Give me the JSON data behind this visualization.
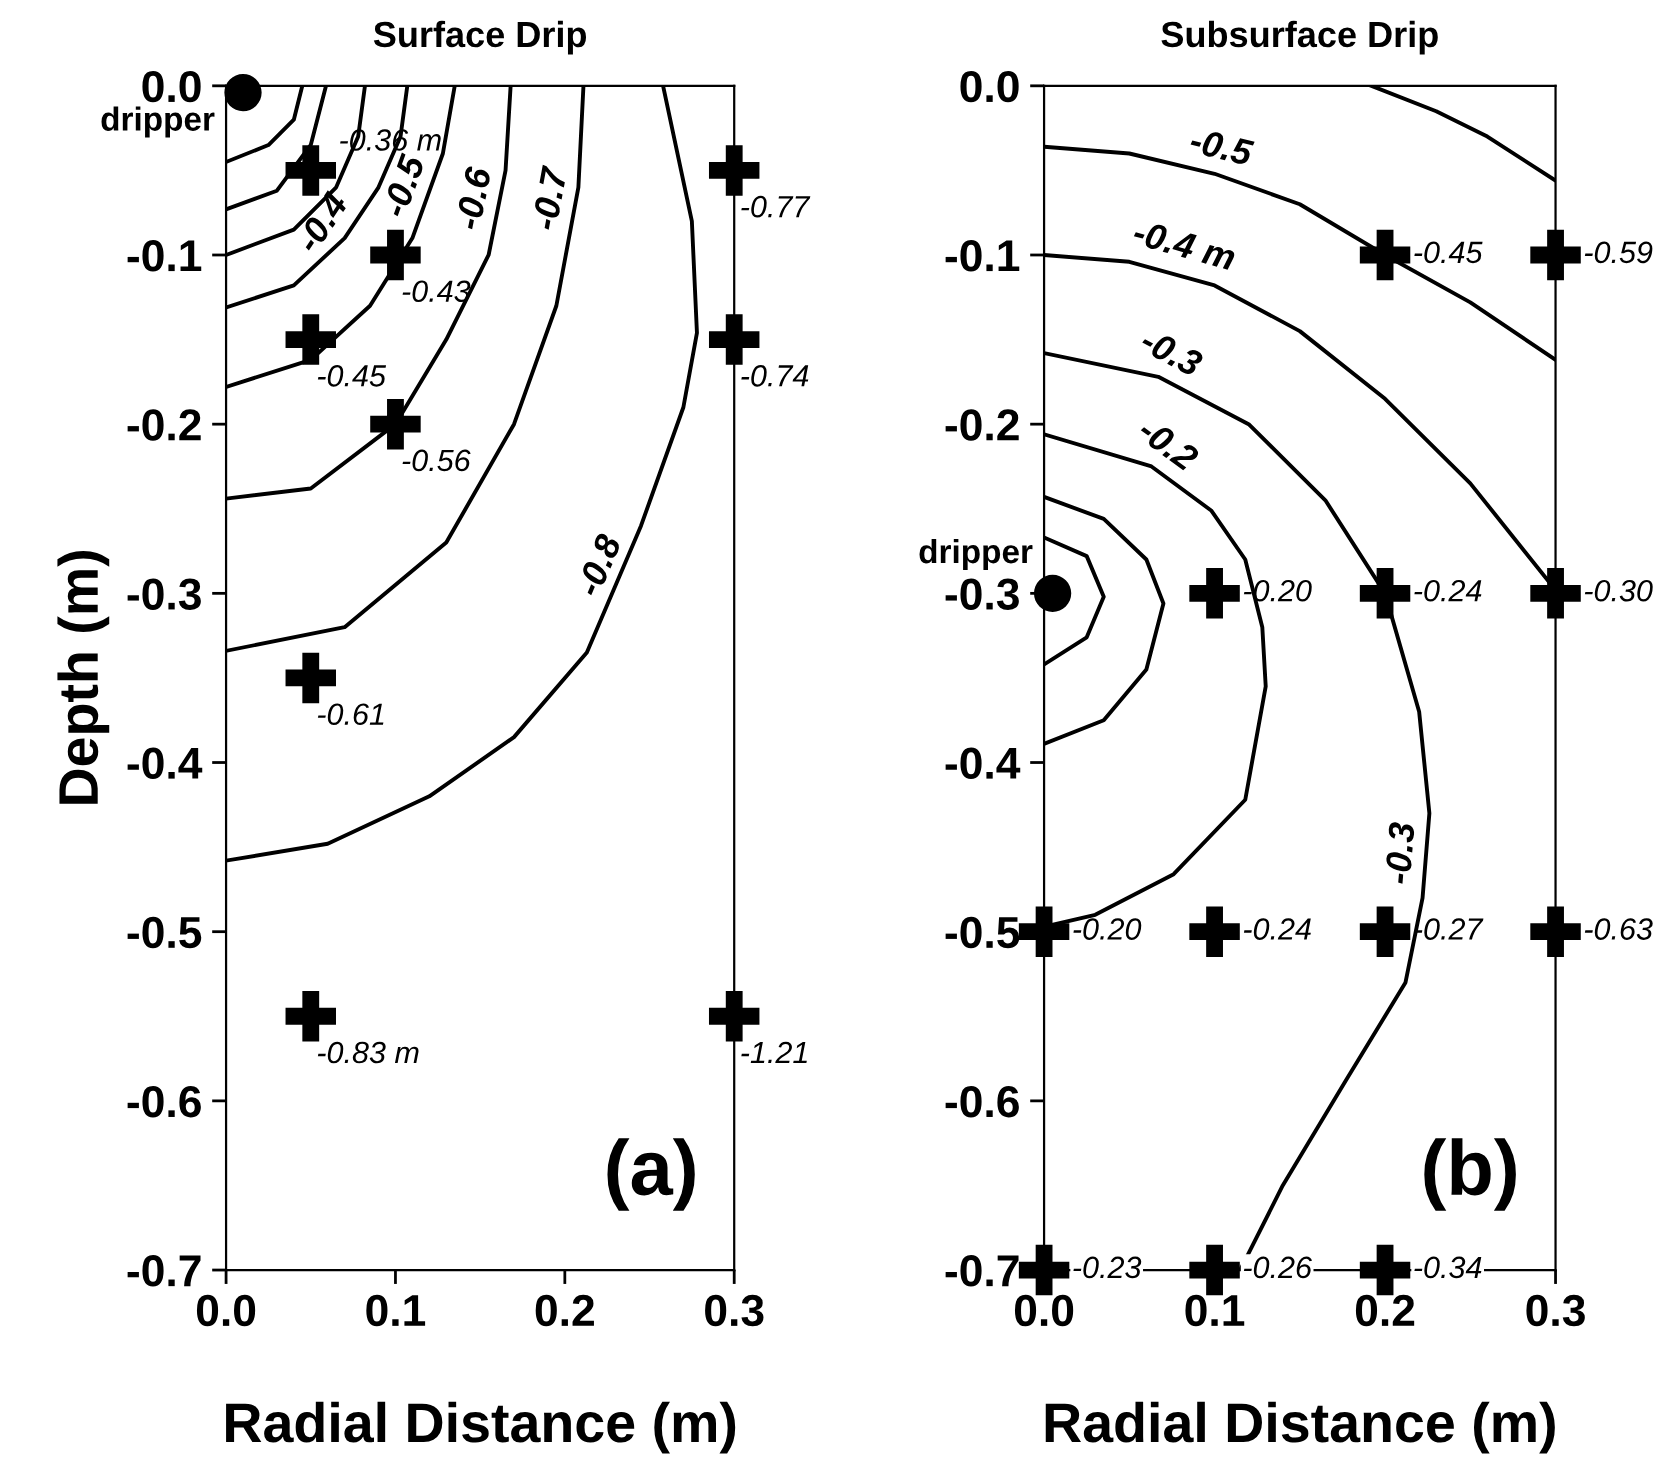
{
  "chart_data": [
    {
      "type": "line",
      "title": "Surface Drip",
      "xlabel": "Radial Distance (m)",
      "ylabel": "Depth (m)",
      "grid": false,
      "xlim": [
        0,
        0.3
      ],
      "ylim": [
        -0.7,
        0
      ],
      "xticks": [
        {
          "value": 0,
          "label": "0.0"
        },
        0.1,
        0.2,
        0.3
      ],
      "yticks": [
        {
          "value": 0,
          "label": "0.0"
        },
        {
          "value": -0.1,
          "label": "-0.1"
        },
        {
          "value": -0.2,
          "label": "-0.2"
        },
        {
          "value": -0.3,
          "label": "-0.3"
        },
        {
          "value": -0.4,
          "label": "-0.4"
        },
        {
          "value": -0.5,
          "label": "-0.5"
        },
        {
          "value": -0.6,
          "label": "-0.6"
        },
        {
          "value": -0.7,
          "label": "-0.7"
        }
      ],
      "series": [
        {
          "color": "#000000",
          "x": [
            0,
            0.025,
            0.04,
            0.045
          ],
          "values": [
            -0.045,
            -0.035,
            -0.02,
            0
          ]
        },
        {
          "color": "#000000",
          "x": [
            0,
            0.03,
            0.05,
            0.059
          ],
          "values": [
            -0.073,
            -0.062,
            -0.035,
            0
          ]
        },
        {
          "color": "#000000",
          "x": [
            0,
            0.04,
            0.065,
            0.078,
            0.082
          ],
          "values": [
            -0.1,
            -0.085,
            -0.06,
            -0.03,
            0
          ]
        },
        {
          "color": "#000000",
          "x": [
            0,
            0.04,
            0.07,
            0.09,
            0.103,
            0.107
          ],
          "values": [
            -0.131,
            -0.118,
            -0.09,
            -0.06,
            -0.03,
            0
          ]
        },
        {
          "color": "#000000",
          "x": [
            0,
            0.05,
            0.085,
            0.11,
            0.128,
            0.135
          ],
          "values": [
            -0.178,
            -0.162,
            -0.13,
            -0.09,
            -0.04,
            0
          ]
        },
        {
          "color": "#000000",
          "x": [
            0,
            0.05,
            0.1,
            0.13,
            0.155,
            0.165,
            0.168
          ],
          "values": [
            -0.244,
            -0.238,
            -0.2,
            -0.15,
            -0.1,
            -0.05,
            0
          ]
        },
        {
          "color": "#000000",
          "x": [
            0,
            0.07,
            0.13,
            0.17,
            0.195,
            0.208,
            0.211
          ],
          "values": [
            -0.334,
            -0.32,
            -0.27,
            -0.2,
            -0.13,
            -0.06,
            0
          ]
        },
        {
          "color": "#000000",
          "x": [
            0,
            0.06,
            0.12,
            0.17,
            0.213,
            0.245,
            0.27,
            0.278,
            0.275,
            0.258
          ],
          "values": [
            -0.458,
            -0.448,
            -0.42,
            -0.385,
            -0.335,
            -0.26,
            -0.19,
            -0.146,
            -0.08,
            0
          ]
        },
        {
          "type": "scatter",
          "marker": "circle",
          "color": "#000000",
          "x": [
            0.01
          ],
          "values": [
            -0.004
          ]
        },
        {
          "type": "scatter",
          "marker": "cross",
          "color": "#000000",
          "x": [
            0.05,
            0.1,
            0.05,
            0.1,
            0.05,
            0.05,
            0.3,
            0.3,
            0.3
          ],
          "values": [
            -0.05,
            -0.1,
            -0.15,
            -0.2,
            -0.35,
            -0.55,
            -0.05,
            -0.15,
            -0.55
          ]
        }
      ],
      "annotations": [
        {
          "text": "dripper",
          "x": 0,
          "y": 0
        },
        {
          "text": "-0.4",
          "x": 0.07,
          "y": -0.09
        },
        {
          "text": "-0.5",
          "x": 0.12,
          "y": -0.065
        },
        {
          "text": "-0.6",
          "x": 0.162,
          "y": -0.07
        },
        {
          "text": "-0.7",
          "x": 0.207,
          "y": -0.07
        },
        {
          "text": "-0.8",
          "x": 0.235,
          "y": -0.29
        },
        {
          "text": "-0.36 m",
          "x": 0.05,
          "y": -0.05
        },
        {
          "text": "-0.43",
          "x": 0.1,
          "y": -0.1
        },
        {
          "text": "-0.45",
          "x": 0.05,
          "y": -0.15
        },
        {
          "text": "-0.56",
          "x": 0.1,
          "y": -0.2
        },
        {
          "text": "-0.61",
          "x": 0.05,
          "y": -0.35
        },
        {
          "text": "-0.83 m",
          "x": 0.05,
          "y": -0.55
        },
        {
          "text": "-0.77",
          "x": 0.3,
          "y": -0.05
        },
        {
          "text": "-0.74",
          "x": 0.3,
          "y": -0.15
        },
        {
          "text": "-1.21",
          "x": 0.3,
          "y": -0.55
        },
        "(a)"
      ]
    },
    {
      "type": "line",
      "title": "Subsurface Drip",
      "xlabel": "Radial Distance (m)",
      "xlim": [
        0,
        0.3
      ],
      "ylim": [
        -0.7,
        0
      ],
      "xticks": [
        {
          "value": 0,
          "label": "0.0"
        },
        0.1,
        0.2,
        0.3
      ],
      "yticks": [
        {
          "value": 0,
          "label": "0.0"
        },
        {
          "value": -0.1,
          "label": "-0.1"
        },
        {
          "value": -0.2,
          "label": "-0.2"
        },
        {
          "value": -0.3,
          "label": "-0.3"
        },
        {
          "value": -0.4,
          "label": "-0.4"
        },
        {
          "value": -0.5,
          "label": "-0.5"
        },
        {
          "value": -0.6,
          "label": "-0.6"
        },
        {
          "value": -0.7,
          "label": "-0.7"
        }
      ],
      "grid": false,
      "series": [
        {
          "color": "#000000",
          "x": [
            0.192,
            0.23,
            0.26,
            0.3
          ],
          "values": [
            0,
            -0.015,
            -0.03,
            -0.056
          ]
        },
        {
          "color": "#000000",
          "x": [
            0,
            0.05,
            0.1,
            0.15,
            0.2,
            0.25,
            0.3
          ],
          "values": [
            -0.036,
            -0.04,
            -0.052,
            -0.07,
            -0.1,
            -0.128,
            -0.162
          ]
        },
        {
          "color": "#000000",
          "x": [
            0,
            0.05,
            0.1,
            0.15,
            0.2,
            0.25,
            0.3
          ],
          "values": [
            -0.1,
            -0.104,
            -0.118,
            -0.145,
            -0.185,
            -0.235,
            -0.298
          ]
        },
        {
          "color": "#000000",
          "x": [
            0,
            0.067,
            0.12,
            0.165,
            0.2,
            0.22,
            0.226,
            0.222,
            0.212,
            0.177,
            0.14,
            0.115
          ],
          "values": [
            -0.158,
            -0.172,
            -0.2,
            -0.245,
            -0.3,
            -0.37,
            -0.43,
            -0.48,
            -0.53,
            -0.588,
            -0.65,
            -0.7
          ]
        },
        {
          "color": "#000000",
          "x": [
            0,
            0.063,
            0.098,
            0.118,
            0.128,
            0.13,
            0.118,
            0.076,
            0.03,
            0
          ],
          "values": [
            -0.206,
            -0.225,
            -0.251,
            -0.28,
            -0.32,
            -0.355,
            -0.422,
            -0.466,
            -0.49,
            -0.497
          ]
        },
        {
          "color": "#000000",
          "x": [
            0,
            0.035,
            0.06,
            0.07,
            0.06,
            0.035,
            0
          ],
          "values": [
            -0.243,
            -0.256,
            -0.28,
            -0.306,
            -0.345,
            -0.375,
            -0.389
          ]
        },
        {
          "color": "#000000",
          "x": [
            0,
            0.025,
            0.035,
            0.025,
            0
          ],
          "values": [
            -0.267,
            -0.278,
            -0.302,
            -0.326,
            -0.342
          ]
        },
        {
          "type": "scatter",
          "marker": "circle",
          "color": "#000000",
          "x": [
            0.005
          ],
          "values": [
            -0.3
          ]
        },
        {
          "type": "scatter",
          "marker": "cross",
          "color": "#000000",
          "x": [
            0.2,
            0.3,
            0.1,
            0.2,
            0.3,
            0,
            0.1,
            0.2,
            0.3,
            0,
            0.1,
            0.2
          ],
          "values": [
            -0.1,
            -0.1,
            -0.3,
            -0.3,
            -0.3,
            -0.5,
            -0.5,
            -0.5,
            -0.5,
            -0.7,
            -0.7,
            -0.7
          ]
        }
      ],
      "annotations": [
        {
          "text": "dripper",
          "x": 0,
          "y": -0.3
        },
        {
          "text": "-0.5",
          "x": 0.1,
          "y": -0.052
        },
        {
          "text": "-0.4 m",
          "x": 0.078,
          "y": -0.11
        },
        {
          "text": "-0.3",
          "x": 0.067,
          "y": -0.172
        },
        {
          "text": "-0.2",
          "x": 0.063,
          "y": -0.225
        },
        {
          "text": "-0.3",
          "x": 0.225,
          "y": -0.455
        },
        {
          "text": "-0.45",
          "x": 0.2,
          "y": -0.1
        },
        {
          "text": "-0.59",
          "x": 0.3,
          "y": -0.1
        },
        {
          "text": "-0.20",
          "x": 0.1,
          "y": -0.3
        },
        {
          "text": "-0.24",
          "x": 0.2,
          "y": -0.3
        },
        {
          "text": "-0.30",
          "x": 0.3,
          "y": -0.3
        },
        {
          "text": "-0.20",
          "x": 0,
          "y": -0.5
        },
        {
          "text": "-0.24",
          "x": 0.1,
          "y": -0.5
        },
        {
          "text": "-0.27",
          "x": 0.2,
          "y": -0.5
        },
        {
          "text": "-0.63",
          "x": 0.3,
          "y": -0.5
        },
        {
          "text": "-0.23",
          "x": 0,
          "y": -0.7
        },
        {
          "text": "-0.26",
          "x": 0.1,
          "y": -0.7
        },
        {
          "text": "-0.34",
          "x": 0.2,
          "y": -0.7
        },
        "(b)"
      ]
    }
  ]
}
